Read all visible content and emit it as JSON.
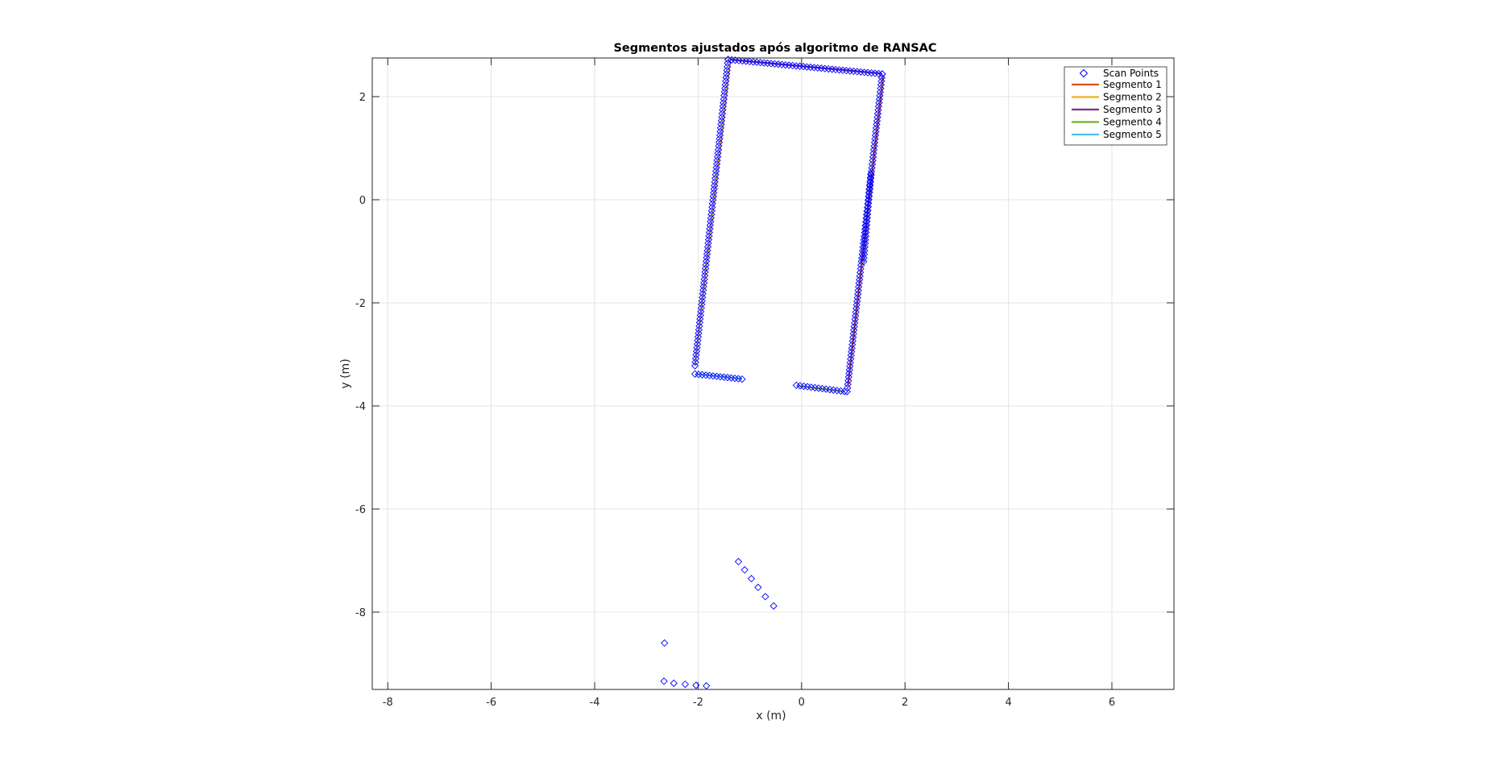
{
  "chart_data": {
    "type": "scatter",
    "title": "Segmentos ajustados após algoritmo de RANSAC",
    "xlabel": "x (m)",
    "ylabel": "y (m)",
    "xlim": [
      -8.3,
      7.2
    ],
    "ylim": [
      -9.5,
      2.75
    ],
    "x_ticks": [
      -8,
      -6,
      -4,
      -2,
      0,
      2,
      4,
      6
    ],
    "y_ticks": [
      -8,
      -6,
      -4,
      -2,
      0,
      2
    ],
    "grid": true,
    "legend_position": "top-right",
    "colors": {
      "scan_points": "#0000ff",
      "segmento_1": "#d95319",
      "segmento_2": "#edb120",
      "segmento_3": "#7e2f8e",
      "segmento_4": "#77ac30",
      "segmento_5": "#4dbeee"
    },
    "scan_points": {
      "name": "Scan Points",
      "polylines": [
        [
          [
            -1.42,
            2.72
          ],
          [
            -2.06,
            -3.22
          ]
        ],
        [
          [
            -1.42,
            2.72
          ],
          [
            1.56,
            2.44
          ]
        ],
        [
          [
            1.56,
            2.44
          ],
          [
            0.88,
            -3.72
          ]
        ],
        [
          [
            -2.06,
            -3.38
          ],
          [
            -1.15,
            -3.48
          ]
        ],
        [
          [
            -0.1,
            -3.6
          ],
          [
            0.83,
            -3.72
          ]
        ],
        [
          [
            1.34,
            0.5
          ],
          [
            1.2,
            -1.2
          ]
        ]
      ],
      "isolated": [
        [
          -1.22,
          -7.02
        ],
        [
          -1.1,
          -7.18
        ],
        [
          -0.97,
          -7.35
        ],
        [
          -0.84,
          -7.52
        ],
        [
          -0.7,
          -7.7
        ],
        [
          -0.54,
          -7.88
        ],
        [
          -2.65,
          -8.6
        ],
        [
          -2.66,
          -9.34
        ],
        [
          -2.47,
          -9.38
        ],
        [
          -2.25,
          -9.4
        ],
        [
          -2.04,
          -9.42
        ],
        [
          -1.84,
          -9.43
        ]
      ]
    },
    "series": [
      {
        "name": "Segmento 1",
        "x": [
          0.9,
          1.58
        ],
        "y": [
          -3.6,
          2.42
        ]
      },
      {
        "name": "Segmento 2",
        "x": [
          -2.06,
          -1.38
        ],
        "y": [
          -3.2,
          2.7
        ]
      },
      {
        "name": "Segmento 3",
        "x": [
          -1.38,
          1.54
        ],
        "y": [
          2.72,
          2.45
        ]
      },
      {
        "name": "Segmento 4",
        "x": [
          -0.08,
          0.82
        ],
        "y": [
          -3.61,
          -3.72
        ]
      },
      {
        "name": "Segmento 5",
        "x": [
          -2.04,
          -1.15
        ],
        "y": [
          -3.38,
          -3.47
        ]
      }
    ]
  }
}
